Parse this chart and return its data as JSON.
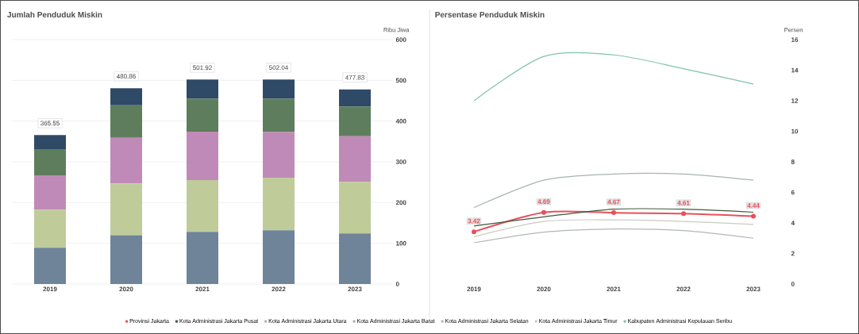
{
  "chart_data": [
    {
      "type": "bar",
      "stacked": true,
      "title": "Jumlah Penduduk Miskin",
      "ylabel": "Ribu Jiwa",
      "categories": [
        "2019",
        "2020",
        "2021",
        "2022",
        "2023"
      ],
      "ylim": [
        0,
        600
      ],
      "yticks": [
        0,
        100,
        200,
        300,
        400,
        500,
        600
      ],
      "grid": "y",
      "totals": [
        "365.55",
        "480.86",
        "501.92",
        "502.04",
        "477.83"
      ],
      "series": [
        {
          "color": "#6f8499",
          "values": [
            89,
            120,
            128,
            132,
            124
          ]
        },
        {
          "color": "#bfcc9a",
          "values": [
            93,
            127,
            127,
            129,
            127
          ]
        },
        {
          "color": "#c08ab8",
          "values": [
            85,
            112,
            119,
            112,
            112
          ]
        },
        {
          "color": "#5e7d5c",
          "values": [
            64,
            80,
            81,
            82,
            73
          ]
        },
        {
          "color": "#2e4a66",
          "values": [
            34.55,
            41.86,
            46.92,
            47.04,
            41.83
          ]
        }
      ]
    },
    {
      "type": "line",
      "title": "Persentase Penduduk Miskin",
      "ylabel": "Persen",
      "categories": [
        "2019",
        "2020",
        "2021",
        "2022",
        "2023"
      ],
      "ylim": [
        0,
        16
      ],
      "yticks": [
        0,
        2,
        4,
        6,
        8,
        10,
        12,
        14,
        16
      ],
      "legend": "bottom",
      "series": [
        {
          "name": "Provinsi Jakarta",
          "color": "#e8505b",
          "marker": "circle",
          "values": [
            3.42,
            4.69,
            4.67,
            4.61,
            4.44
          ],
          "value_labels": [
            "3.42",
            "4.69",
            "4.67",
            "4.61",
            "4.44"
          ]
        },
        {
          "name": "Kota Administrasi Jakarta Pusat",
          "color": "#3d5a3d",
          "values": [
            3.8,
            4.4,
            4.9,
            4.9,
            4.7
          ]
        },
        {
          "name": "Kota Administrasi Jakarta Utara",
          "color": "#a8b4ac",
          "values": [
            5.0,
            6.8,
            7.2,
            7.2,
            6.8
          ]
        },
        {
          "name": "Kota Administrasi Jakarta Barat",
          "color": "#9fb59a",
          "values": [
            null,
            null,
            null,
            null,
            null
          ]
        },
        {
          "name": "Kota Administrasi Jakarta Selatan",
          "color": "#b0b8b4",
          "values": [
            2.7,
            3.4,
            3.6,
            3.5,
            3.0
          ]
        },
        {
          "name": "Kota Administrasi Jakarta Timur",
          "color": "#c8ccc0",
          "values": [
            3.1,
            4.1,
            4.2,
            4.1,
            3.9
          ]
        },
        {
          "name": "Kabupaten Administrasi Kepulauan Seribu",
          "color": "#7fc4a8",
          "values": [
            12.0,
            14.9,
            15.0,
            14.1,
            13.1
          ]
        }
      ]
    }
  ]
}
